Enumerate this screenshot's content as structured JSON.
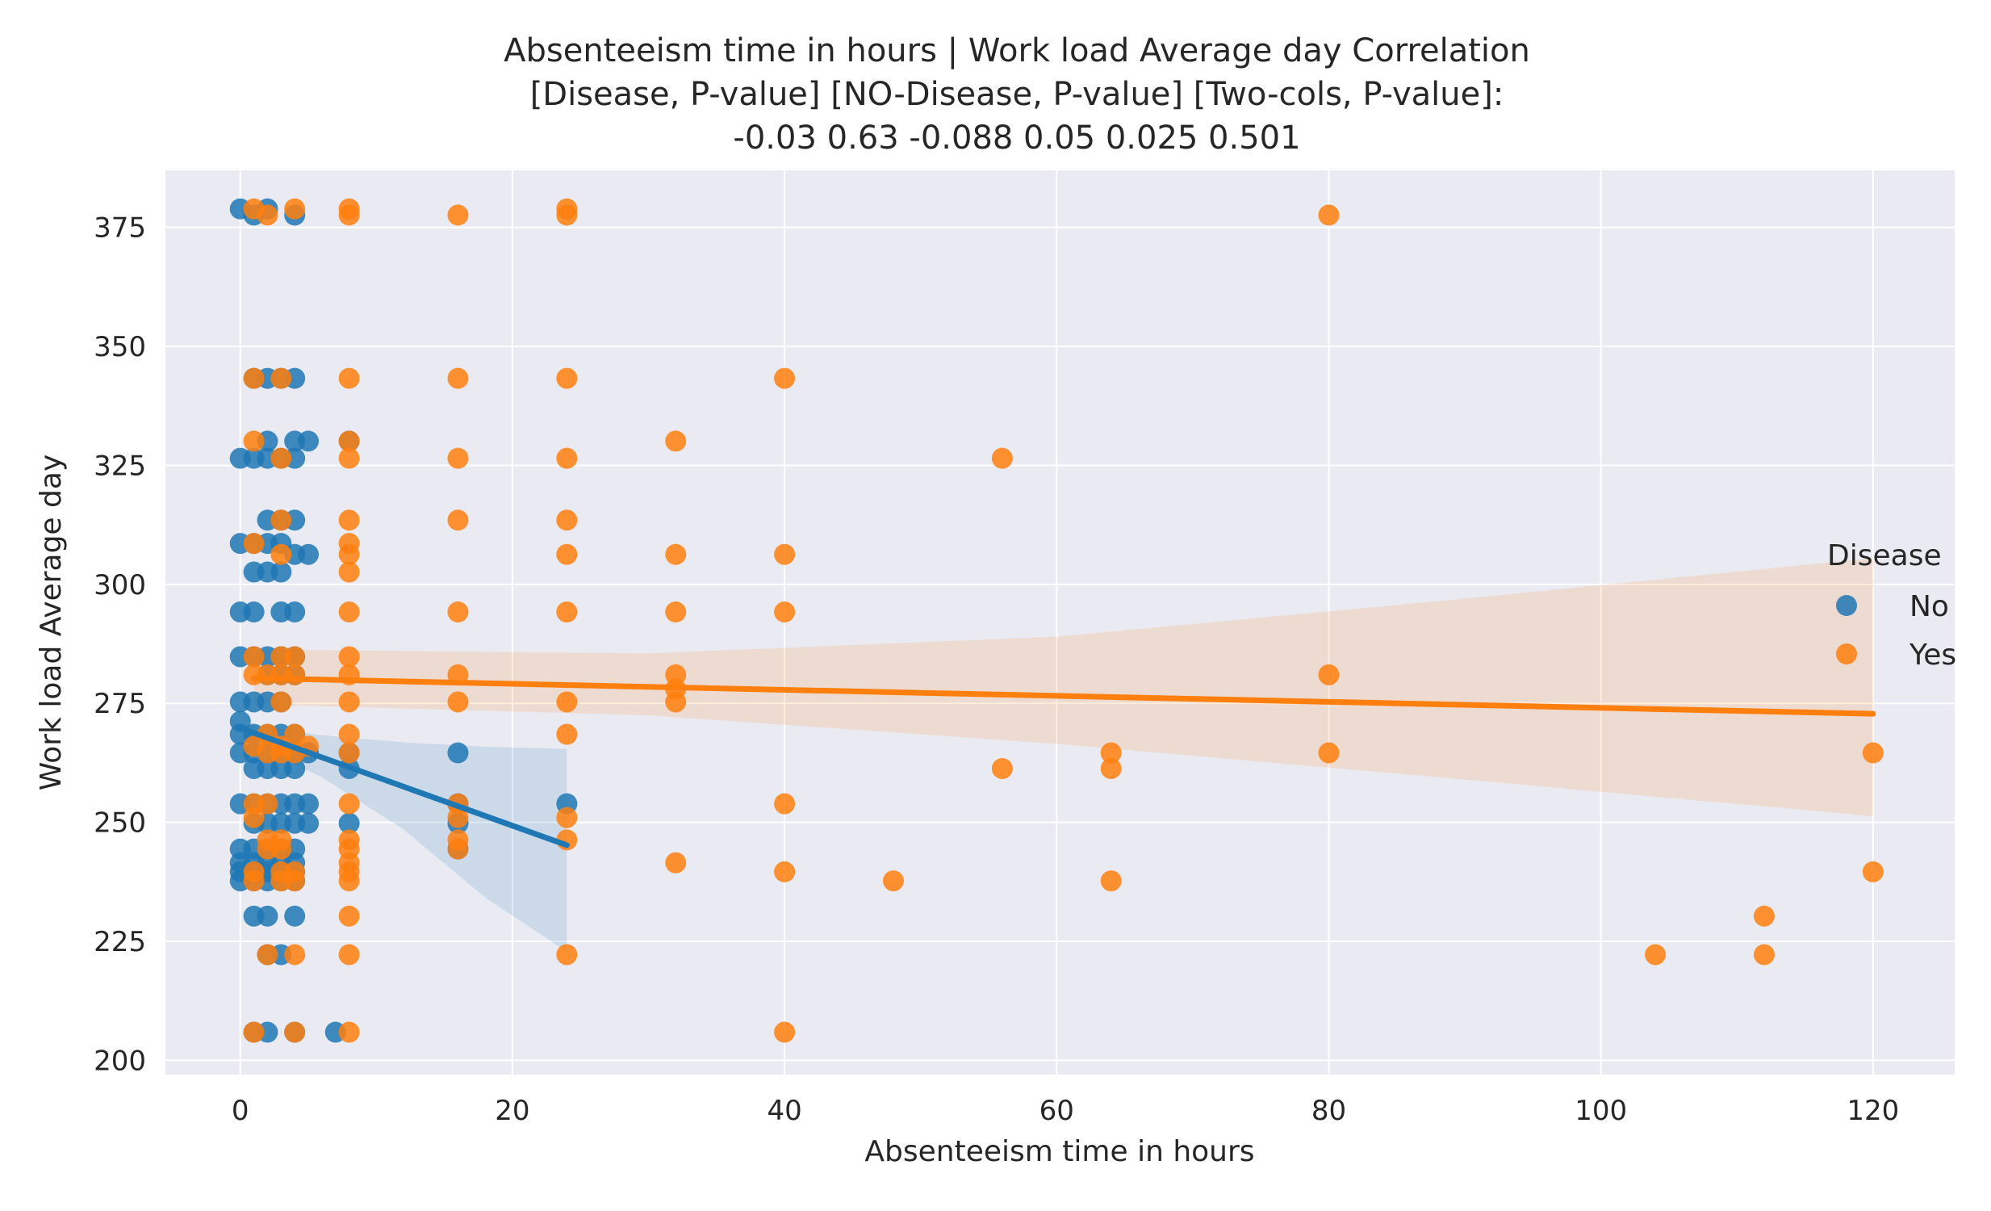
{
  "chart_data": {
    "type": "scatter",
    "title_lines": [
      "Absenteeism time in hours | Work load Average day    Correlation",
      "[Disease,        P-value]   [NO-Disease,      P-value]   [Two-cols,  P-value]:",
      "-0.03              0.63             -0.088                  0.05         0.025         0.501"
    ],
    "xlabel": "Absenteeism time in hours",
    "ylabel": "Work load Average day",
    "xlim": [
      -5.5,
      126
    ],
    "ylim": [
      197,
      387
    ],
    "xticks": [
      0,
      20,
      40,
      60,
      80,
      100,
      120
    ],
    "yticks": [
      200,
      225,
      250,
      275,
      300,
      325,
      350,
      375
    ],
    "grid": true,
    "background": "#eaeaf2",
    "legend": {
      "title": "Disease",
      "placement": "right"
    },
    "series": [
      {
        "name": "No",
        "color": "#1f77b4",
        "points": [
          [
            0,
            378.9
          ],
          [
            2,
            378.9
          ],
          [
            4,
            377.6
          ],
          [
            1,
            377.6
          ],
          [
            1,
            343.3
          ],
          [
            2,
            343.3
          ],
          [
            3,
            343.3
          ],
          [
            4,
            343.3
          ],
          [
            0,
            326.5
          ],
          [
            1,
            326.5
          ],
          [
            2,
            326.5
          ],
          [
            3,
            326.5
          ],
          [
            4,
            326.5
          ],
          [
            2,
            330.1
          ],
          [
            4,
            330.1
          ],
          [
            5,
            330.1
          ],
          [
            2,
            313.5
          ],
          [
            3,
            313.5
          ],
          [
            4,
            313.5
          ],
          [
            0,
            308.6
          ],
          [
            1,
            308.6
          ],
          [
            2,
            308.6
          ],
          [
            3,
            308.6
          ],
          [
            4,
            306.3
          ],
          [
            5,
            306.3
          ],
          [
            1,
            302.6
          ],
          [
            2,
            302.6
          ],
          [
            3,
            302.6
          ],
          [
            0,
            294.2
          ],
          [
            1,
            294.2
          ],
          [
            3,
            294.2
          ],
          [
            4,
            294.2
          ],
          [
            0,
            284.8
          ],
          [
            1,
            284.8
          ],
          [
            2,
            284.8
          ],
          [
            3,
            284.8
          ],
          [
            4,
            284.8
          ],
          [
            2,
            281.0
          ],
          [
            3,
            281.0
          ],
          [
            4,
            281.0
          ],
          [
            0,
            275.3
          ],
          [
            1,
            275.3
          ],
          [
            2,
            275.3
          ],
          [
            3,
            275.3
          ],
          [
            0,
            271.2
          ],
          [
            0,
            268.5
          ],
          [
            1,
            268.5
          ],
          [
            2,
            268.5
          ],
          [
            3,
            268.5
          ],
          [
            4,
            268.5
          ],
          [
            0,
            264.6
          ],
          [
            1,
            264.6
          ],
          [
            2,
            264.6
          ],
          [
            3,
            264.6
          ],
          [
            4,
            264.6
          ],
          [
            5,
            264.6
          ],
          [
            1,
            261.3
          ],
          [
            2,
            261.3
          ],
          [
            3,
            261.3
          ],
          [
            4,
            261.3
          ],
          [
            0,
            253.9
          ],
          [
            1,
            253.9
          ],
          [
            2,
            253.9
          ],
          [
            3,
            253.9
          ],
          [
            4,
            253.9
          ],
          [
            5,
            253.9
          ],
          [
            1,
            249.8
          ],
          [
            2,
            249.8
          ],
          [
            3,
            249.8
          ],
          [
            4,
            249.8
          ],
          [
            5,
            249.8
          ],
          [
            0,
            244.4
          ],
          [
            1,
            244.4
          ],
          [
            2,
            244.4
          ],
          [
            3,
            244.4
          ],
          [
            4,
            244.4
          ],
          [
            0,
            241.5
          ],
          [
            1,
            241.5
          ],
          [
            2,
            241.5
          ],
          [
            3,
            241.5
          ],
          [
            4,
            241.5
          ],
          [
            0,
            239.6
          ],
          [
            1,
            239.6
          ],
          [
            2,
            239.6
          ],
          [
            3,
            239.6
          ],
          [
            4,
            239.6
          ],
          [
            0,
            237.7
          ],
          [
            1,
            237.7
          ],
          [
            2,
            237.7
          ],
          [
            3,
            237.7
          ],
          [
            4,
            237.7
          ],
          [
            1,
            230.3
          ],
          [
            2,
            230.3
          ],
          [
            4,
            230.3
          ],
          [
            2,
            222.2
          ],
          [
            3,
            222.2
          ],
          [
            1,
            205.9
          ],
          [
            2,
            205.9
          ],
          [
            4,
            205.9
          ],
          [
            7,
            205.9
          ],
          [
            8,
            330.1
          ],
          [
            8,
            264.6
          ],
          [
            8,
            261.3
          ],
          [
            8,
            249.8
          ],
          [
            16,
            264.6
          ],
          [
            16,
            253.9
          ],
          [
            16,
            249.8
          ],
          [
            16,
            244.4
          ],
          [
            24,
            253.9
          ]
        ]
      },
      {
        "name": "Yes",
        "color": "#ff7f0e",
        "points": [
          [
            1,
            378.9
          ],
          [
            2,
            377.6
          ],
          [
            4,
            378.9
          ],
          [
            8,
            378.9
          ],
          [
            8,
            377.6
          ],
          [
            16,
            377.6
          ],
          [
            24,
            378.9
          ],
          [
            24,
            377.6
          ],
          [
            80,
            377.6
          ],
          [
            1,
            343.3
          ],
          [
            3,
            343.3
          ],
          [
            8,
            343.3
          ],
          [
            16,
            343.3
          ],
          [
            24,
            343.3
          ],
          [
            40,
            343.3
          ],
          [
            1,
            330.1
          ],
          [
            8,
            330.1
          ],
          [
            32,
            330.1
          ],
          [
            3,
            326.5
          ],
          [
            8,
            326.5
          ],
          [
            16,
            326.5
          ],
          [
            24,
            326.5
          ],
          [
            56,
            326.5
          ],
          [
            3,
            313.5
          ],
          [
            8,
            313.5
          ],
          [
            16,
            313.5
          ],
          [
            24,
            313.5
          ],
          [
            1,
            308.6
          ],
          [
            8,
            308.6
          ],
          [
            3,
            306.3
          ],
          [
            8,
            306.3
          ],
          [
            24,
            306.3
          ],
          [
            32,
            306.3
          ],
          [
            40,
            306.3
          ],
          [
            8,
            302.6
          ],
          [
            8,
            294.2
          ],
          [
            16,
            294.2
          ],
          [
            24,
            294.2
          ],
          [
            32,
            294.2
          ],
          [
            40,
            294.2
          ],
          [
            1,
            284.8
          ],
          [
            3,
            284.8
          ],
          [
            4,
            284.8
          ],
          [
            8,
            284.8
          ],
          [
            1,
            281.0
          ],
          [
            2,
            281.0
          ],
          [
            3,
            281.0
          ],
          [
            4,
            281.0
          ],
          [
            8,
            281.0
          ],
          [
            16,
            281.0
          ],
          [
            32,
            281.0
          ],
          [
            80,
            281.0
          ],
          [
            32,
            278.0
          ],
          [
            3,
            275.3
          ],
          [
            8,
            275.3
          ],
          [
            16,
            275.3
          ],
          [
            24,
            275.3
          ],
          [
            32,
            275.3
          ],
          [
            2,
            268.5
          ],
          [
            4,
            268.5
          ],
          [
            8,
            268.5
          ],
          [
            24,
            268.5
          ],
          [
            1,
            266.0
          ],
          [
            3,
            266.0
          ],
          [
            5,
            266.0
          ],
          [
            2,
            264.6
          ],
          [
            3,
            264.6
          ],
          [
            4,
            264.6
          ],
          [
            8,
            264.6
          ],
          [
            64,
            264.6
          ],
          [
            80,
            264.6
          ],
          [
            120,
            264.6
          ],
          [
            56,
            261.3
          ],
          [
            64,
            261.3
          ],
          [
            1,
            253.9
          ],
          [
            2,
            253.9
          ],
          [
            8,
            253.9
          ],
          [
            16,
            253.9
          ],
          [
            40,
            253.9
          ],
          [
            1,
            251.0
          ],
          [
            16,
            251.0
          ],
          [
            24,
            251.0
          ],
          [
            2,
            246.3
          ],
          [
            3,
            246.3
          ],
          [
            8,
            246.3
          ],
          [
            16,
            246.3
          ],
          [
            24,
            246.3
          ],
          [
            2,
            244.4
          ],
          [
            3,
            244.4
          ],
          [
            8,
            244.4
          ],
          [
            16,
            244.4
          ],
          [
            32,
            241.5
          ],
          [
            8,
            241.5
          ],
          [
            1,
            239.6
          ],
          [
            3,
            239.6
          ],
          [
            4,
            239.6
          ],
          [
            8,
            239.6
          ],
          [
            40,
            239.6
          ],
          [
            120,
            239.6
          ],
          [
            1,
            237.7
          ],
          [
            3,
            237.7
          ],
          [
            4,
            237.7
          ],
          [
            8,
            237.7
          ],
          [
            48,
            237.7
          ],
          [
            64,
            237.7
          ],
          [
            8,
            230.3
          ],
          [
            112,
            230.3
          ],
          [
            2,
            222.2
          ],
          [
            4,
            222.2
          ],
          [
            8,
            222.2
          ],
          [
            24,
            222.2
          ],
          [
            104,
            222.2
          ],
          [
            112,
            222.2
          ],
          [
            1,
            205.9
          ],
          [
            4,
            205.9
          ],
          [
            8,
            205.9
          ],
          [
            40,
            205.9
          ]
        ]
      }
    ],
    "regression": [
      {
        "series": "No",
        "line": [
          [
            0,
            269.8
          ],
          [
            24,
            245.2
          ]
        ],
        "ci_upper": [
          [
            0,
            270.6
          ],
          [
            6,
            268.3
          ],
          [
            12,
            266.8
          ],
          [
            18,
            265.9
          ],
          [
            24,
            265.4
          ]
        ],
        "ci_lower": [
          [
            0,
            267.6
          ],
          [
            6,
            259.5
          ],
          [
            12,
            248.5
          ],
          [
            18,
            234.2
          ],
          [
            24,
            222.8
          ]
        ]
      },
      {
        "series": "Yes",
        "line": [
          [
            1,
            280.3
          ],
          [
            120,
            272.8
          ]
        ],
        "ci_upper": [
          [
            1,
            286.3
          ],
          [
            30,
            285.5
          ],
          [
            60,
            289.0
          ],
          [
            90,
            297.0
          ],
          [
            120,
            305.5
          ]
        ],
        "ci_lower": [
          [
            1,
            274.8
          ],
          [
            30,
            272.5
          ],
          [
            60,
            266.5
          ],
          [
            90,
            259.0
          ],
          [
            120,
            251.3
          ]
        ]
      }
    ]
  }
}
